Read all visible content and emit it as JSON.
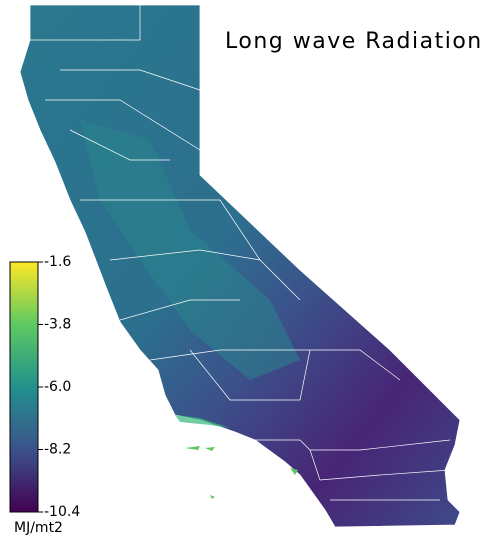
{
  "chart_data": {
    "type": "map",
    "title": "Long wave Radiation",
    "colorbar": {
      "label": "MJ/mt2",
      "lim": [
        -10.4,
        -1.6
      ],
      "ticks": [
        -10.4,
        -8.2,
        {
          "value": -6.0,
          "label": "-6.0"
        },
        -3.8,
        -1.6
      ],
      "colormap": [
        "#440154",
        "#3b528b",
        "#21918c",
        "#5ec962",
        "#fde725"
      ]
    }
  }
}
